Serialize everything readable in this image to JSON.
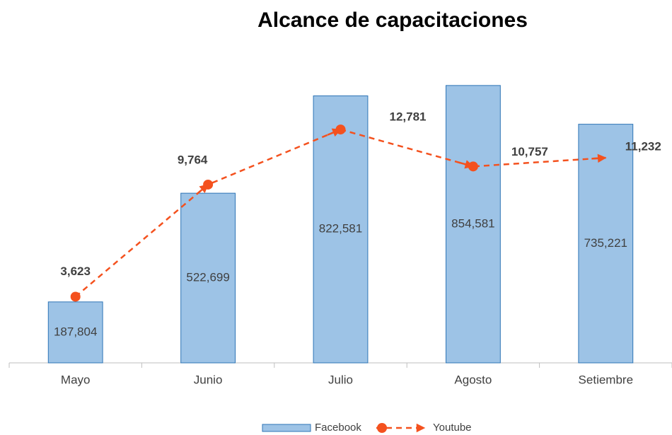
{
  "chart_data": {
    "type": "bar-line",
    "title": "Alcance de capacitaciones",
    "categories": [
      "Mayo",
      "Junio",
      "Julio",
      "Agosto",
      "Setiembre"
    ],
    "series": [
      {
        "name": "Facebook",
        "type": "bar",
        "color": "#9dc3e6",
        "values": [
          187804,
          522699,
          822581,
          854581,
          735221
        ],
        "value_labels": [
          "187,804",
          "522,699",
          "822,581",
          "854,581",
          "735,221"
        ]
      },
      {
        "name": "Youtube",
        "type": "line",
        "axis": "y2",
        "color": "#f4511e",
        "values": [
          3623,
          9764,
          12781,
          10757,
          11232
        ],
        "value_labels": [
          "3,623",
          "9,764",
          "12,781",
          "10,757",
          "11,232"
        ]
      }
    ],
    "ylim": [
      0,
      900000
    ],
    "y2lim": [
      0,
      16000
    ],
    "grid": false,
    "legend": "bottom"
  }
}
